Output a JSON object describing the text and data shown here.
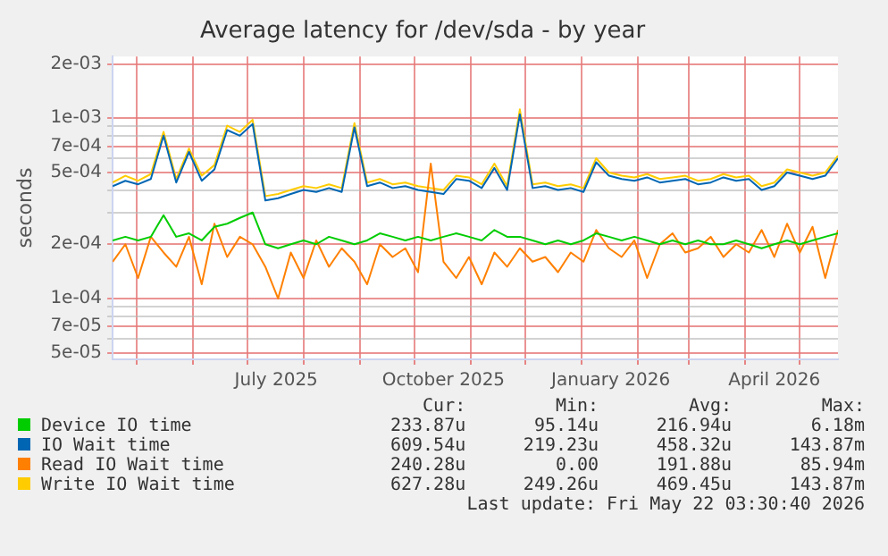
{
  "chart_data": {
    "type": "line",
    "title": "Average latency for /dev/sda - by year",
    "ylabel": "seconds",
    "x": [
      "2025-04-18",
      "2025-04-25",
      "2025-05-02",
      "2025-05-09",
      "2025-05-16",
      "2025-05-23",
      "2025-05-30",
      "2025-06-06",
      "2025-06-13",
      "2025-06-20",
      "2025-06-27",
      "2025-07-04",
      "2025-07-11",
      "2025-07-18",
      "2025-07-25",
      "2025-08-01",
      "2025-08-08",
      "2025-08-15",
      "2025-08-22",
      "2025-08-29",
      "2025-09-05",
      "2025-09-12",
      "2025-09-19",
      "2025-09-26",
      "2025-10-03",
      "2025-10-10",
      "2025-10-17",
      "2025-10-24",
      "2025-10-31",
      "2025-11-07",
      "2025-11-14",
      "2025-11-21",
      "2025-11-28",
      "2025-12-05",
      "2025-12-12",
      "2025-12-19",
      "2025-12-26",
      "2026-01-02",
      "2026-01-09",
      "2026-01-16",
      "2026-01-23",
      "2026-01-30",
      "2026-02-06",
      "2026-02-13",
      "2026-02-20",
      "2026-02-27",
      "2026-03-06",
      "2026-03-13",
      "2026-03-20",
      "2026-03-27",
      "2026-04-03",
      "2026-04-10",
      "2026-04-17",
      "2026-04-24",
      "2026-05-01",
      "2026-05-08",
      "2026-05-15",
      "2026-05-22"
    ],
    "series": [
      {
        "name": "Device IO time",
        "color": "#00cc00",
        "values": [
          0.00021,
          0.00022,
          0.00021,
          0.00022,
          0.00029,
          0.00022,
          0.00023,
          0.00021,
          0.00025,
          0.00026,
          0.00028,
          0.0003,
          0.0002,
          0.00019,
          0.0002,
          0.00021,
          0.0002,
          0.00022,
          0.00021,
          0.0002,
          0.00021,
          0.00023,
          0.00022,
          0.00021,
          0.00022,
          0.00021,
          0.00022,
          0.00023,
          0.00022,
          0.00021,
          0.00024,
          0.00022,
          0.00022,
          0.00021,
          0.0002,
          0.00021,
          0.0002,
          0.00021,
          0.00023,
          0.00022,
          0.00021,
          0.00022,
          0.00021,
          0.0002,
          0.00021,
          0.0002,
          0.00021,
          0.0002,
          0.0002,
          0.00021,
          0.0002,
          0.00019,
          0.0002,
          0.00021,
          0.0002,
          0.00021,
          0.00022,
          0.00023
        ]
      },
      {
        "name": "IO Wait time",
        "color": "#0066b3",
        "values": [
          0.00042,
          0.00045,
          0.00043,
          0.00046,
          0.0008,
          0.00044,
          0.00065,
          0.00045,
          0.00052,
          0.00086,
          0.0008,
          0.00093,
          0.00035,
          0.00036,
          0.00038,
          0.0004,
          0.00039,
          0.00041,
          0.00039,
          0.00089,
          0.00042,
          0.00044,
          0.00041,
          0.00042,
          0.0004,
          0.00039,
          0.00038,
          0.00046,
          0.00045,
          0.00041,
          0.00053,
          0.0004,
          0.00105,
          0.00041,
          0.00042,
          0.0004,
          0.00041,
          0.00039,
          0.00057,
          0.00048,
          0.00046,
          0.00045,
          0.00047,
          0.00044,
          0.00045,
          0.00046,
          0.00043,
          0.00044,
          0.00047,
          0.00045,
          0.00046,
          0.0004,
          0.00042,
          0.0005,
          0.00048,
          0.00046,
          0.00048,
          0.0006
        ]
      },
      {
        "name": "Read IO Wait time",
        "color": "#ff8000",
        "values": [
          0.00016,
          0.0002,
          0.00013,
          0.00022,
          0.00018,
          0.00015,
          0.00022,
          0.00012,
          0.00026,
          0.00017,
          0.00022,
          0.0002,
          0.00015,
          0.0001,
          0.00018,
          0.00013,
          0.00021,
          0.00015,
          0.00019,
          0.00016,
          0.00012,
          0.0002,
          0.00017,
          0.00019,
          0.00014,
          0.00056,
          0.00016,
          0.00013,
          0.00017,
          0.00012,
          0.00018,
          0.00015,
          0.00019,
          0.00016,
          0.00017,
          0.00014,
          0.00018,
          0.00016,
          0.00024,
          0.00019,
          0.00017,
          0.00021,
          0.00013,
          0.0002,
          0.00023,
          0.00018,
          0.00019,
          0.00022,
          0.00017,
          0.0002,
          0.00018,
          0.00024,
          0.00017,
          0.00026,
          0.00018,
          0.00025,
          0.00013,
          0.00024
        ]
      },
      {
        "name": "Write IO Wait time",
        "color": "#ffcc00",
        "values": [
          0.00044,
          0.00048,
          0.00045,
          0.00049,
          0.00084,
          0.00046,
          0.00068,
          0.00048,
          0.00055,
          0.00091,
          0.00084,
          0.00098,
          0.00037,
          0.00038,
          0.0004,
          0.00042,
          0.00041,
          0.00043,
          0.00041,
          0.00094,
          0.00044,
          0.00046,
          0.00043,
          0.00044,
          0.00042,
          0.00041,
          0.0004,
          0.00048,
          0.00047,
          0.00043,
          0.00056,
          0.00042,
          0.00112,
          0.00043,
          0.00044,
          0.00042,
          0.00043,
          0.00041,
          0.0006,
          0.0005,
          0.00048,
          0.00047,
          0.00049,
          0.00046,
          0.00047,
          0.00048,
          0.00045,
          0.00046,
          0.00049,
          0.00047,
          0.00048,
          0.00042,
          0.00044,
          0.00052,
          0.0005,
          0.00048,
          0.0005,
          0.00062
        ]
      }
    ],
    "log": "y",
    "ylim": [
      4.6e-05,
      0.0022
    ],
    "yticks": [
      {
        "value": 5e-05,
        "label": "5e-05"
      },
      {
        "value": 6e-05,
        "label": null
      },
      {
        "value": 7e-05,
        "label": "7e-05"
      },
      {
        "value": 8e-05,
        "label": null
      },
      {
        "value": 9e-05,
        "label": null
      },
      {
        "value": 0.0001,
        "label": "1e-04"
      },
      {
        "value": 0.0002,
        "label": "2e-04"
      },
      {
        "value": 0.0003,
        "label": null
      },
      {
        "value": 0.0004,
        "label": null
      },
      {
        "value": 0.0005,
        "label": "5e-04"
      },
      {
        "value": 0.0006,
        "label": null
      },
      {
        "value": 0.0007,
        "label": "7e-04"
      },
      {
        "value": 0.0008,
        "label": null
      },
      {
        "value": 0.0009,
        "label": null
      },
      {
        "value": 0.001,
        "label": "1e-03"
      },
      {
        "value": 0.002,
        "label": "2e-03"
      }
    ],
    "xlim": [
      "2025-04-18",
      "2026-05-22"
    ],
    "xticks": [
      {
        "value": "2025-05-01",
        "label": null
      },
      {
        "value": "2025-06-01",
        "label": null
      },
      {
        "value": "2025-07-01",
        "label": null
      },
      {
        "value": "2025-07-17",
        "label": "July 2025"
      },
      {
        "value": "2025-08-01",
        "label": null
      },
      {
        "value": "2025-09-01",
        "label": null
      },
      {
        "value": "2025-10-01",
        "label": null
      },
      {
        "value": "2025-10-17",
        "label": "October 2025"
      },
      {
        "value": "2025-11-01",
        "label": null
      },
      {
        "value": "2025-12-01",
        "label": null
      },
      {
        "value": "2026-01-01",
        "label": null
      },
      {
        "value": "2026-01-17",
        "label": "January 2026"
      },
      {
        "value": "2026-02-01",
        "label": null
      },
      {
        "value": "2026-03-01",
        "label": null
      },
      {
        "value": "2026-04-01",
        "label": null
      },
      {
        "value": "2026-04-17",
        "label": "April 2026"
      },
      {
        "value": "2026-05-01",
        "label": null
      }
    ],
    "grid": true,
    "legend": "bottom",
    "marker": "none",
    "line_style": "solid",
    "annotations": [
      "Cur:",
      "Min:",
      "Avg:",
      "Max:",
      "233.87u",
      "95.14u",
      "216.94u",
      "6.18m",
      "609.54u",
      "219.23u",
      "458.32u",
      "143.87m",
      "240.28u",
      "0.00",
      "191.88u",
      "85.94m",
      "627.28u",
      "249.26u",
      "469.45u",
      "143.87m",
      "Last update: Fri May 22 03:30:40 2026"
    ]
  }
}
